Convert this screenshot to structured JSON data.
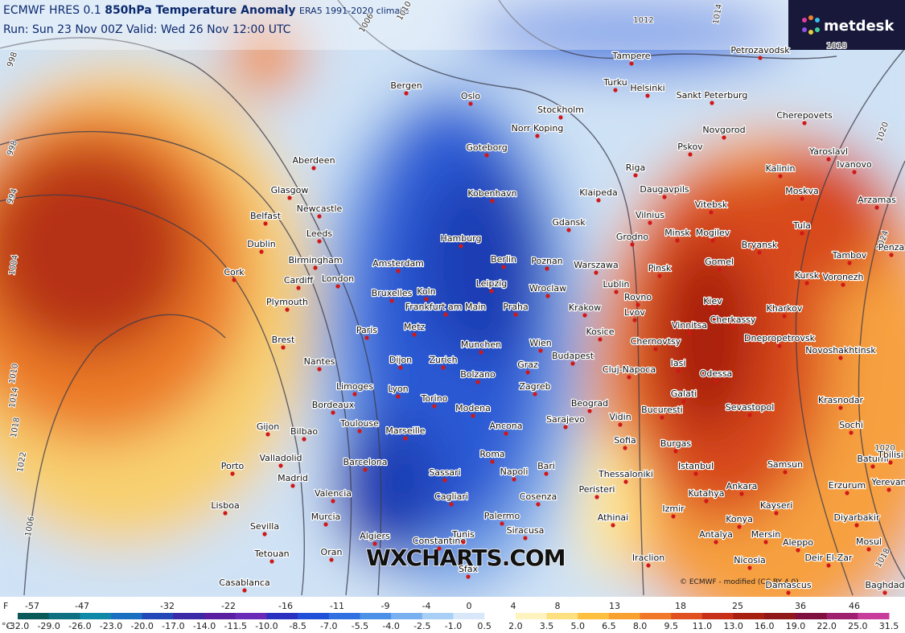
{
  "header": {
    "line1_a": "ECMWF HRES 0.1",
    "line1_b": "850hPa Temperature Anomaly",
    "line1_c": "ERA5 1991-2020 climate",
    "line2": "Run: Sun 23 Nov 00Z Valid: Wed 26 Nov 12:00 UTC"
  },
  "logo": "metdesk",
  "watermark": "WXCHARTS.COM",
  "copyright": "© ECMWF - modified (CC BY 4.0)",
  "isobars": [
    "998",
    "998",
    "994",
    "1004",
    "1006",
    "1010",
    "1014",
    "1018",
    "1022",
    "1006",
    "1010",
    "1012",
    "1014",
    "1018",
    "1020",
    "1024",
    "1020",
    "1018"
  ],
  "cities": [
    "Tampere",
    "Petrozavodsk",
    "Turku",
    "Helsinki",
    "Sankt Peterburg",
    "Bergen",
    "Oslo",
    "Stockholm",
    "Norr Koping",
    "Cherepovets",
    "Novgorod",
    "Pskov",
    "Yaroslavl",
    "Ivanovo",
    "Goteborg",
    "Aberdeen",
    "Riga",
    "Kalinin",
    "Glasgow",
    "Kobenhavn",
    "Klaipeda",
    "Daugavpils",
    "Moskva",
    "Arzamas",
    "Belfast",
    "Newcastle",
    "Vitebsk",
    "Vilnius",
    "Gdansk",
    "Hamburg",
    "Leeds",
    "Tula",
    "Dublin",
    "Grodno",
    "Minsk",
    "Mogilev",
    "Bryansk",
    "Penza",
    "Birmingham",
    "Amsterdam",
    "Berlin",
    "Poznan",
    "Warszawa",
    "Pinsk",
    "Gomel",
    "Tambov",
    "Cork",
    "Cardiff",
    "London",
    "Leipzig",
    "Wroclaw",
    "Lublin",
    "Kursk",
    "Voronezh",
    "Plymouth",
    "Bruxelles",
    "Koln",
    "Rovno",
    "Kiev",
    "Frankfurt am Main",
    "Praha",
    "Krakow",
    "Lvov",
    "Kharkov",
    "Paris",
    "Metz",
    "Vinnitsa",
    "Cherkassy",
    "Kosice",
    "Brest",
    "Dnepropetrovsk",
    "Munchen",
    "Wien",
    "Chernovtsy",
    "Budapest",
    "Novoshakhtinsk",
    "Nantes",
    "Dijon",
    "Zurich",
    "Graz",
    "Cluj-Napoca",
    "Iasi",
    "Odessa",
    "Bolzano",
    "Limoges",
    "Lyon",
    "Zagreb",
    "Galati",
    "Krasnodar",
    "Torino",
    "Bordeaux",
    "Beograd",
    "Sevastopol",
    "Modena",
    "Bucuresti",
    "Vidin",
    "Toulouse",
    "Marseille",
    "Ancona",
    "Sarajevo",
    "Sochi",
    "Gijon",
    "Bilbao",
    "Sofia",
    "Burgas",
    "Batumi",
    "Tbilisi",
    "Valladolid",
    "Barcelona",
    "Roma",
    "Bari",
    "Istanbul",
    "Samsun",
    "Porto",
    "Thessaloniki",
    "Madrid",
    "Sassari",
    "Napoli",
    "Ankara",
    "Erzurum",
    "Yerevan",
    "Valencia",
    "Kutahya",
    "Peristeri",
    "Lisboa",
    "Cagliari",
    "Cosenza",
    "Izmir",
    "Kayseri",
    "Murcia",
    "Athinai",
    "Konya",
    "Diyarbakir",
    "Sevilla",
    "Palermo",
    "Siracusa",
    "Algiers",
    "Constantine",
    "Tunis",
    "Antalya",
    "Mersin",
    "Aleppo",
    "Mosul",
    "Tetouan",
    "Oran",
    "Nicosia",
    "Deir El-Zar",
    "Iraclion",
    "Sfax",
    "Casablanca",
    "Damascus",
    "Baghdad"
  ],
  "colorbar": {
    "f_unit": "F",
    "c_unit": "°C",
    "f_labels": [
      "-57",
      "-47",
      "-32",
      "-22",
      "-16",
      "-11",
      "-9",
      "-4",
      "0",
      "4",
      "8",
      "13",
      "18",
      "25",
      "36",
      "46"
    ],
    "c_labels": [
      "-32.0",
      "-29.0",
      "-26.0",
      "-23.0",
      "-20.0",
      "-17.0",
      "-14.0",
      "-11.5",
      "-10.0",
      "-8.5",
      "-7.0",
      "-5.5",
      "-4.0",
      "-2.5",
      "-1.0",
      "0.5",
      "2.0",
      "3.5",
      "5.0",
      "6.5",
      "8.0",
      "9.5",
      "11.0",
      "13.0",
      "16.0",
      "19.0",
      "22.0",
      "25.0",
      "31.5"
    ],
    "colors": [
      "#0b5a5a",
      "#0e7080",
      "#1088a8",
      "#1a6fc0",
      "#2448b8",
      "#3a2aa8",
      "#5a1ea0",
      "#6a2ab8",
      "#2a30c0",
      "#2050d8",
      "#3070e0",
      "#4c90e8",
      "#78b0f0",
      "#a8cff5",
      "#d8e8fa",
      "#ffffff",
      "#fff4c0",
      "#ffe080",
      "#ffc040",
      "#f8a030",
      "#f07828",
      "#e05020",
      "#c83018",
      "#a82010",
      "#901818",
      "#801040",
      "#a02070",
      "#c83c9c"
    ]
  }
}
